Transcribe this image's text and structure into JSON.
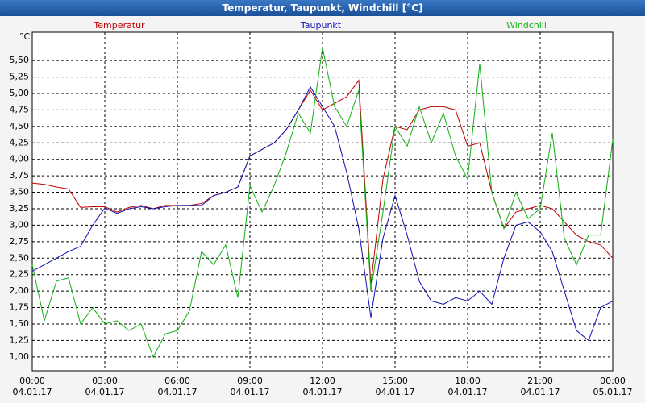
{
  "chart_data": {
    "type": "line",
    "title": "Temperatur, Taupunkt, Windchill [°C]",
    "y_label": "°C",
    "x": [
      0,
      0.5,
      1,
      1.5,
      2,
      2.5,
      3,
      3.5,
      4,
      4.5,
      5,
      5.5,
      6,
      6.5,
      7,
      7.5,
      8,
      8.5,
      9,
      9.5,
      10,
      10.5,
      11,
      11.5,
      12,
      12.5,
      13,
      13.5,
      14,
      14.5,
      15,
      15.5,
      16,
      16.5,
      17,
      17.5,
      18,
      18.5,
      19,
      19.5,
      20,
      20.5,
      21,
      21.5,
      22,
      22.5,
      23,
      23.5,
      24
    ],
    "series": [
      {
        "name": "Temperatur",
        "color": "#c00000",
        "values": [
          3.64,
          3.62,
          3.58,
          3.55,
          3.27,
          3.28,
          3.28,
          3.2,
          3.27,
          3.3,
          3.25,
          3.3,
          3.3,
          3.3,
          3.33,
          3.45,
          3.5,
          3.58,
          4.05,
          4.15,
          4.25,
          4.45,
          4.75,
          5.05,
          4.75,
          4.85,
          4.95,
          5.2,
          2.1,
          3.7,
          4.5,
          4.45,
          4.75,
          4.8,
          4.8,
          4.75,
          4.2,
          4.25,
          3.5,
          2.95,
          3.2,
          3.25,
          3.3,
          3.25,
          3.05,
          2.85,
          2.75,
          2.7,
          2.5
        ]
      },
      {
        "name": "Taupunkt",
        "color": "#1010b0",
        "values": [
          2.3,
          2.4,
          2.5,
          2.6,
          2.68,
          3.0,
          3.26,
          3.18,
          3.25,
          3.28,
          3.25,
          3.28,
          3.3,
          3.3,
          3.3,
          3.45,
          3.5,
          3.58,
          4.05,
          4.15,
          4.25,
          4.45,
          4.75,
          5.1,
          4.8,
          4.5,
          3.8,
          2.95,
          1.6,
          2.8,
          3.45,
          2.85,
          2.15,
          1.85,
          1.8,
          1.9,
          1.85,
          2.0,
          1.8,
          2.5,
          3.0,
          3.05,
          2.9,
          2.6,
          2.0,
          1.4,
          1.25,
          1.75,
          1.85
        ]
      },
      {
        "name": "Windchill",
        "color": "#10b010",
        "values": [
          2.4,
          1.55,
          2.15,
          2.2,
          1.5,
          1.75,
          1.5,
          1.55,
          1.4,
          1.5,
          1.0,
          1.35,
          1.4,
          1.7,
          2.6,
          2.4,
          2.7,
          1.9,
          3.6,
          3.2,
          3.6,
          4.1,
          4.7,
          4.4,
          5.7,
          4.8,
          4.5,
          5.05,
          2.0,
          3.2,
          4.5,
          4.2,
          4.8,
          4.25,
          4.7,
          4.05,
          3.7,
          5.45,
          3.5,
          2.95,
          3.5,
          3.1,
          3.25,
          4.4,
          2.8,
          2.4,
          2.85,
          2.85,
          4.3
        ]
      }
    ],
    "xlim": [
      0,
      24
    ],
    "xticks": [
      {
        "value": 0,
        "label": "00:00\n04.01.17"
      },
      {
        "value": 3,
        "label": "03:00\n04.01.17"
      },
      {
        "value": 6,
        "label": "06:00\n04.01.17"
      },
      {
        "value": 9,
        "label": "09:00\n04.01.17"
      },
      {
        "value": 12,
        "label": "12:00\n04.01.17"
      },
      {
        "value": 15,
        "label": "15:00\n04.01.17"
      },
      {
        "value": 18,
        "label": "18:00\n04.01.17"
      },
      {
        "value": 21,
        "label": "21:00\n04.01.17"
      },
      {
        "value": 24,
        "label": "00:00\n05.01.17"
      }
    ],
    "ylim": [
      0.79,
      5.93
    ],
    "yticks": [
      {
        "value": 1,
        "label": "1,00"
      },
      {
        "value": 1.25,
        "label": "1,25"
      },
      {
        "value": 1.5,
        "label": "1,50"
      },
      {
        "value": 1.75,
        "label": "1,75"
      },
      {
        "value": 2,
        "label": "2,00"
      },
      {
        "value": 2.25,
        "label": "2,25"
      },
      {
        "value": 2.5,
        "label": "2,50"
      },
      {
        "value": 2.75,
        "label": "2,75"
      },
      {
        "value": 3,
        "label": "3,00"
      },
      {
        "value": 3.25,
        "label": "3,25"
      },
      {
        "value": 3.5,
        "label": "3,50"
      },
      {
        "value": 3.75,
        "label": "3,75"
      },
      {
        "value": 4,
        "label": "4,00"
      },
      {
        "value": 4.25,
        "label": "4,25"
      },
      {
        "value": 4.5,
        "label": "4,50"
      },
      {
        "value": 4.75,
        "label": "4,75"
      },
      {
        "value": 5,
        "label": "5,00"
      },
      {
        "value": 5.25,
        "label": "5,25"
      },
      {
        "value": 5.5,
        "label": "5,50"
      }
    ],
    "grid": true
  }
}
